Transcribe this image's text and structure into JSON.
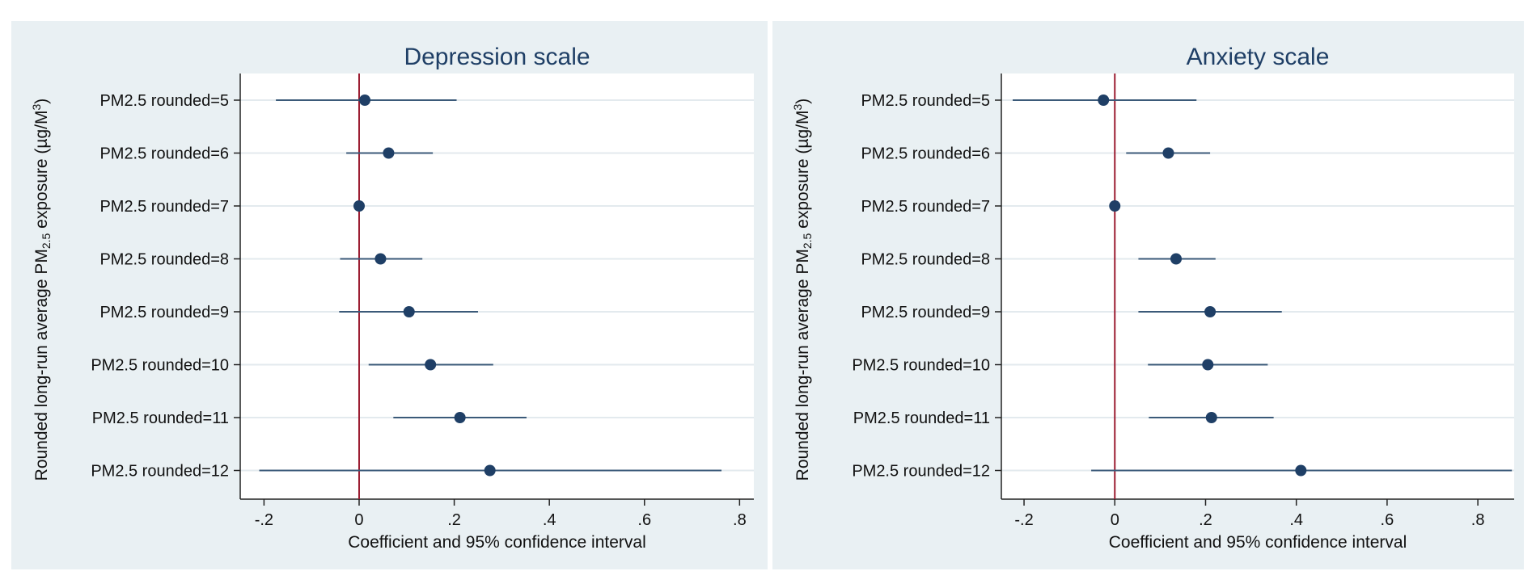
{
  "colors": {
    "panel_background": "#e9f0f3",
    "plot_background": "#ffffff",
    "gridline": "#e3eaee",
    "marker": "#1f3f66",
    "ci_line": "#3b5a79",
    "reference_line": "#9b1c31",
    "title": "#1f3f66"
  },
  "chart_data": [
    {
      "type": "scatter",
      "style": "coefficient plot with horizontal 95% confidence intervals",
      "title": "Depression scale",
      "xlabel": "Coefficient and 95% confidence interval",
      "ylabel": {
        "main": "Rounded long-run average PM",
        "main_sub": "2.5",
        "after": " exposure (µg/M",
        "sup": "3",
        "end": ")"
      },
      "xlim": [
        -0.25,
        0.83
      ],
      "x_ticks": [
        -0.2,
        0,
        0.2,
        0.4,
        0.6,
        0.8
      ],
      "x_tick_labels": [
        "-.2",
        "0",
        ".2",
        ".4",
        ".6",
        ".8"
      ],
      "reference_x": 0,
      "grid": true,
      "categories": [
        "PM2.5 rounded=5",
        "PM2.5 rounded=6",
        "PM2.5 rounded=7",
        "PM2.5 rounded=8",
        "PM2.5 rounded=9",
        "PM2.5 rounded=10",
        "PM2.5 rounded=11",
        "PM2.5 rounded=12"
      ],
      "estimates": [
        0.012,
        0.062,
        0.0,
        0.045,
        0.105,
        0.15,
        0.212,
        0.275
      ],
      "ci_low": [
        -0.175,
        -0.027,
        0.0,
        -0.04,
        -0.042,
        0.02,
        0.072,
        -0.21
      ],
      "ci_high": [
        0.205,
        0.155,
        0.0,
        0.133,
        0.25,
        0.282,
        0.352,
        0.762
      ]
    },
    {
      "type": "scatter",
      "style": "coefficient plot with horizontal 95% confidence intervals",
      "title": "Anxiety scale",
      "xlabel": "Coefficient and 95% confidence interval",
      "ylabel": {
        "main": "Rounded long-run average PM",
        "main_sub": "2.5",
        "after": " exposure (µg/M",
        "sup": "3",
        "end": ")"
      },
      "xlim": [
        -0.25,
        0.88
      ],
      "x_ticks": [
        -0.2,
        0,
        0.2,
        0.4,
        0.6,
        0.8
      ],
      "x_tick_labels": [
        "-.2",
        "0",
        ".2",
        ".4",
        ".6",
        ".8"
      ],
      "reference_x": 0,
      "grid": true,
      "categories": [
        "PM2.5 rounded=5",
        "PM2.5 rounded=6",
        "PM2.5 rounded=7",
        "PM2.5 rounded=8",
        "PM2.5 rounded=9",
        "PM2.5 rounded=10",
        "PM2.5 rounded=11",
        "PM2.5 rounded=12"
      ],
      "estimates": [
        -0.025,
        0.118,
        0.0,
        0.135,
        0.21,
        0.205,
        0.213,
        0.41
      ],
      "ci_low": [
        -0.225,
        0.025,
        0.0,
        0.052,
        0.052,
        0.073,
        0.075,
        -0.052
      ],
      "ci_high": [
        0.18,
        0.21,
        0.0,
        0.222,
        0.368,
        0.337,
        0.35,
        0.875
      ]
    }
  ]
}
